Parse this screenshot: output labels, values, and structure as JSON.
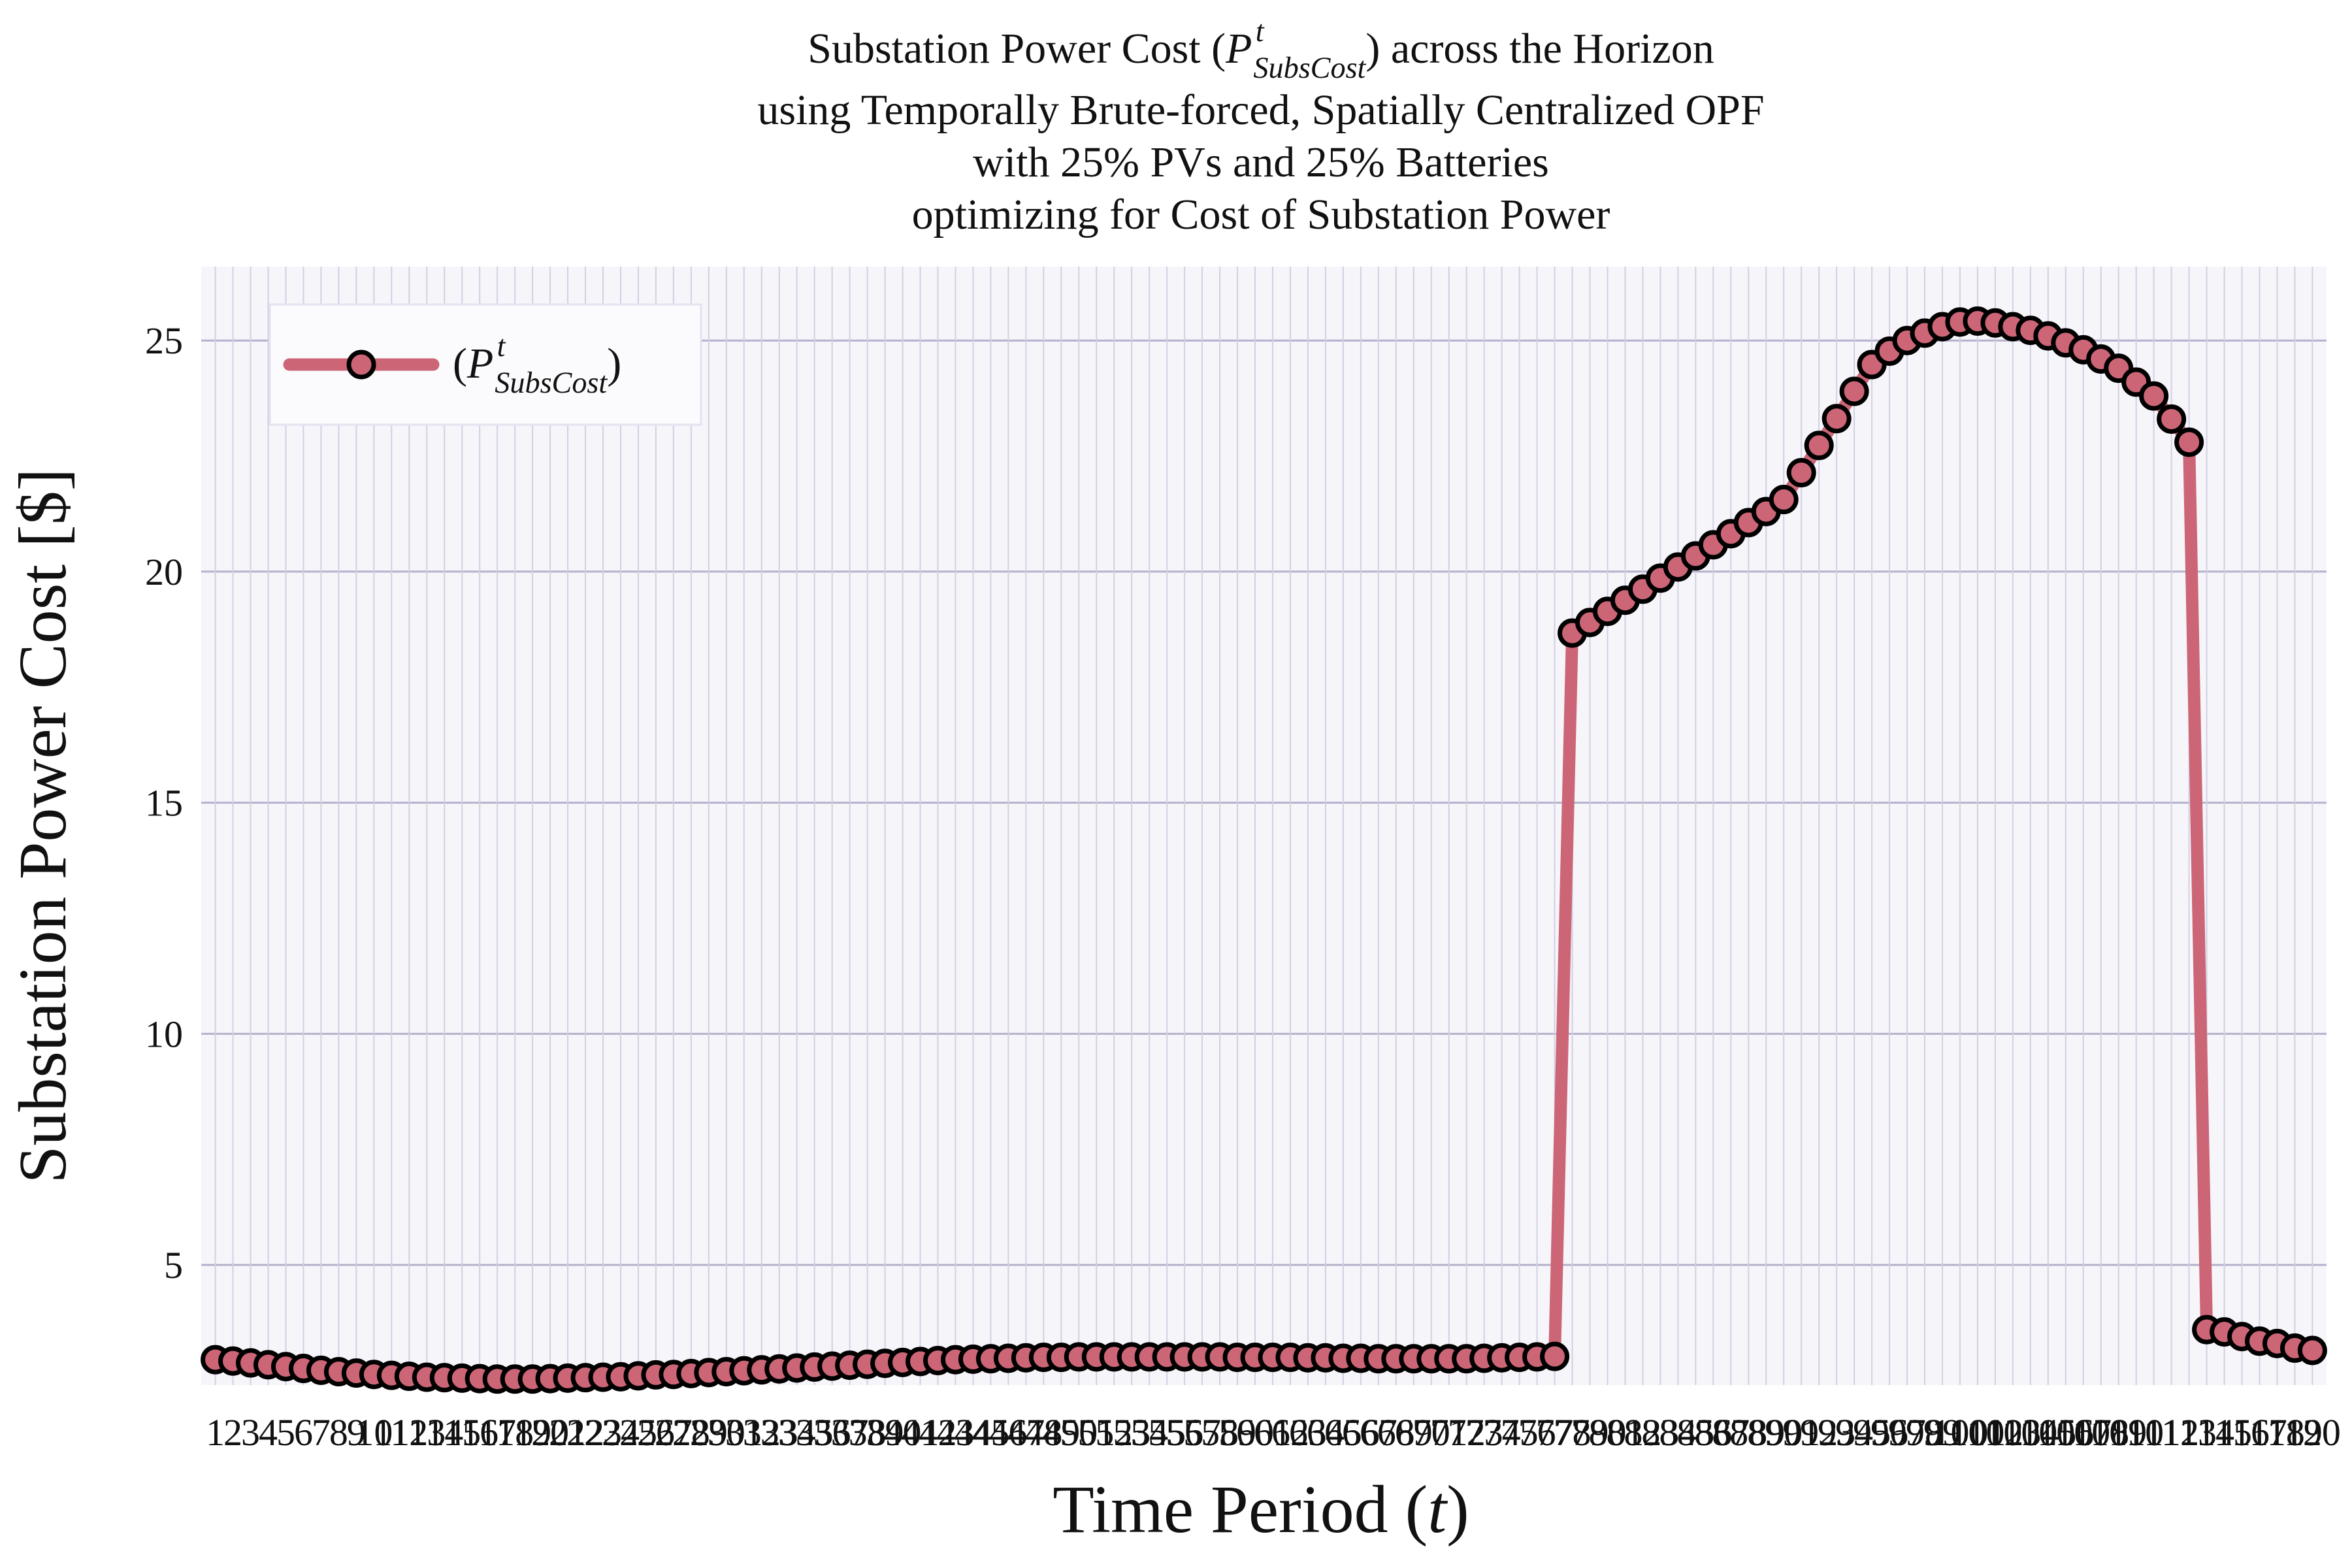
{
  "chart_data": {
    "type": "line",
    "title": {
      "math": {
        "before": "Substation Power Cost (",
        "symbol": "P",
        "sup": "t",
        "sub": "SubsCost",
        "after": ") across the Horizon"
      },
      "lines": [
        "using Temporally Brute-forced, Spatially Centralized OPF",
        "with 25% PVs and 25% Batteries",
        "optimizing for Cost of Substation Power"
      ]
    },
    "xlabel": {
      "before": "Time Period (",
      "symbol": "t",
      "after": ")"
    },
    "ylabel": "Substation Power Cost [$]",
    "x": [
      1,
      2,
      3,
      4,
      5,
      6,
      7,
      8,
      9,
      10,
      11,
      12,
      13,
      14,
      15,
      16,
      17,
      18,
      19,
      20,
      21,
      22,
      23,
      24,
      25,
      26,
      27,
      28,
      29,
      30,
      31,
      32,
      33,
      34,
      35,
      36,
      37,
      38,
      39,
      40,
      41,
      42,
      43,
      44,
      45,
      46,
      47,
      48,
      49,
      50,
      51,
      52,
      53,
      54,
      55,
      56,
      57,
      58,
      59,
      60,
      61,
      62,
      63,
      64,
      65,
      66,
      67,
      68,
      69,
      70,
      71,
      72,
      73,
      74,
      75,
      76,
      77,
      78,
      79,
      80,
      81,
      82,
      83,
      84,
      85,
      86,
      87,
      88,
      89,
      90,
      91,
      92,
      93,
      94,
      95,
      96,
      97,
      98,
      99,
      100,
      101,
      102,
      103,
      104,
      105,
      106,
      107,
      108,
      109,
      110,
      111,
      112,
      113,
      114,
      115,
      116,
      117,
      118,
      119,
      120
    ],
    "series": [
      {
        "name": {
          "before": "(",
          "symbol": "P",
          "sup": "t",
          "sub": "SubsCost",
          "after": ")"
        },
        "color": "#cc6677",
        "values": [
          2.95,
          2.92,
          2.88,
          2.84,
          2.8,
          2.76,
          2.72,
          2.69,
          2.66,
          2.63,
          2.61,
          2.59,
          2.57,
          2.56,
          2.55,
          2.54,
          2.53,
          2.53,
          2.53,
          2.54,
          2.55,
          2.56,
          2.57,
          2.58,
          2.6,
          2.62,
          2.63,
          2.65,
          2.67,
          2.69,
          2.71,
          2.73,
          2.75,
          2.77,
          2.79,
          2.81,
          2.83,
          2.85,
          2.87,
          2.89,
          2.91,
          2.93,
          2.95,
          2.96,
          2.97,
          2.98,
          2.99,
          3.0,
          3.0,
          3.01,
          3.01,
          3.01,
          3.01,
          3.01,
          3.01,
          3.01,
          3.01,
          3.01,
          3.0,
          3.0,
          3.0,
          3.0,
          2.99,
          2.99,
          2.98,
          2.98,
          2.97,
          2.97,
          2.97,
          2.97,
          2.97,
          2.97,
          2.98,
          2.99,
          3.0,
          3.01,
          3.02,
          18.67,
          18.9,
          19.14,
          19.38,
          19.62,
          19.86,
          20.1,
          20.34,
          20.58,
          20.82,
          21.06,
          21.3,
          21.56,
          22.14,
          22.73,
          23.31,
          23.9,
          24.48,
          24.77,
          25.0,
          25.16,
          25.3,
          25.4,
          25.42,
          25.38,
          25.3,
          25.22,
          25.1,
          24.95,
          24.8,
          24.6,
          24.4,
          24.1,
          23.8,
          23.3,
          22.8,
          3.6,
          3.55,
          3.45,
          3.35,
          3.3,
          3.2,
          3.15
        ]
      }
    ],
    "xlim": [
      0.2,
      120.8
    ],
    "ylim": [
      2.4,
      26.6
    ],
    "xticks": [
      1,
      2,
      3,
      4,
      5,
      6,
      7,
      8,
      9,
      10,
      11,
      12,
      13,
      14,
      15,
      16,
      17,
      18,
      19,
      20,
      21,
      22,
      23,
      24,
      25,
      26,
      27,
      28,
      29,
      30,
      31,
      32,
      33,
      34,
      35,
      36,
      37,
      38,
      39,
      40,
      41,
      42,
      43,
      44,
      45,
      46,
      47,
      48,
      49,
      50,
      51,
      52,
      53,
      54,
      55,
      56,
      57,
      58,
      59,
      60,
      61,
      62,
      63,
      64,
      65,
      66,
      67,
      68,
      69,
      70,
      71,
      72,
      73,
      74,
      75,
      76,
      77,
      78,
      79,
      80,
      81,
      82,
      83,
      84,
      85,
      86,
      87,
      88,
      89,
      90,
      91,
      92,
      93,
      94,
      95,
      96,
      97,
      98,
      99,
      100,
      101,
      102,
      103,
      104,
      105,
      106,
      107,
      108,
      109,
      110,
      111,
      112,
      113,
      114,
      115,
      116,
      117,
      118,
      119,
      120
    ],
    "yticks": [
      5,
      10,
      15,
      20,
      25
    ],
    "grid": true,
    "legend": "upper left"
  }
}
